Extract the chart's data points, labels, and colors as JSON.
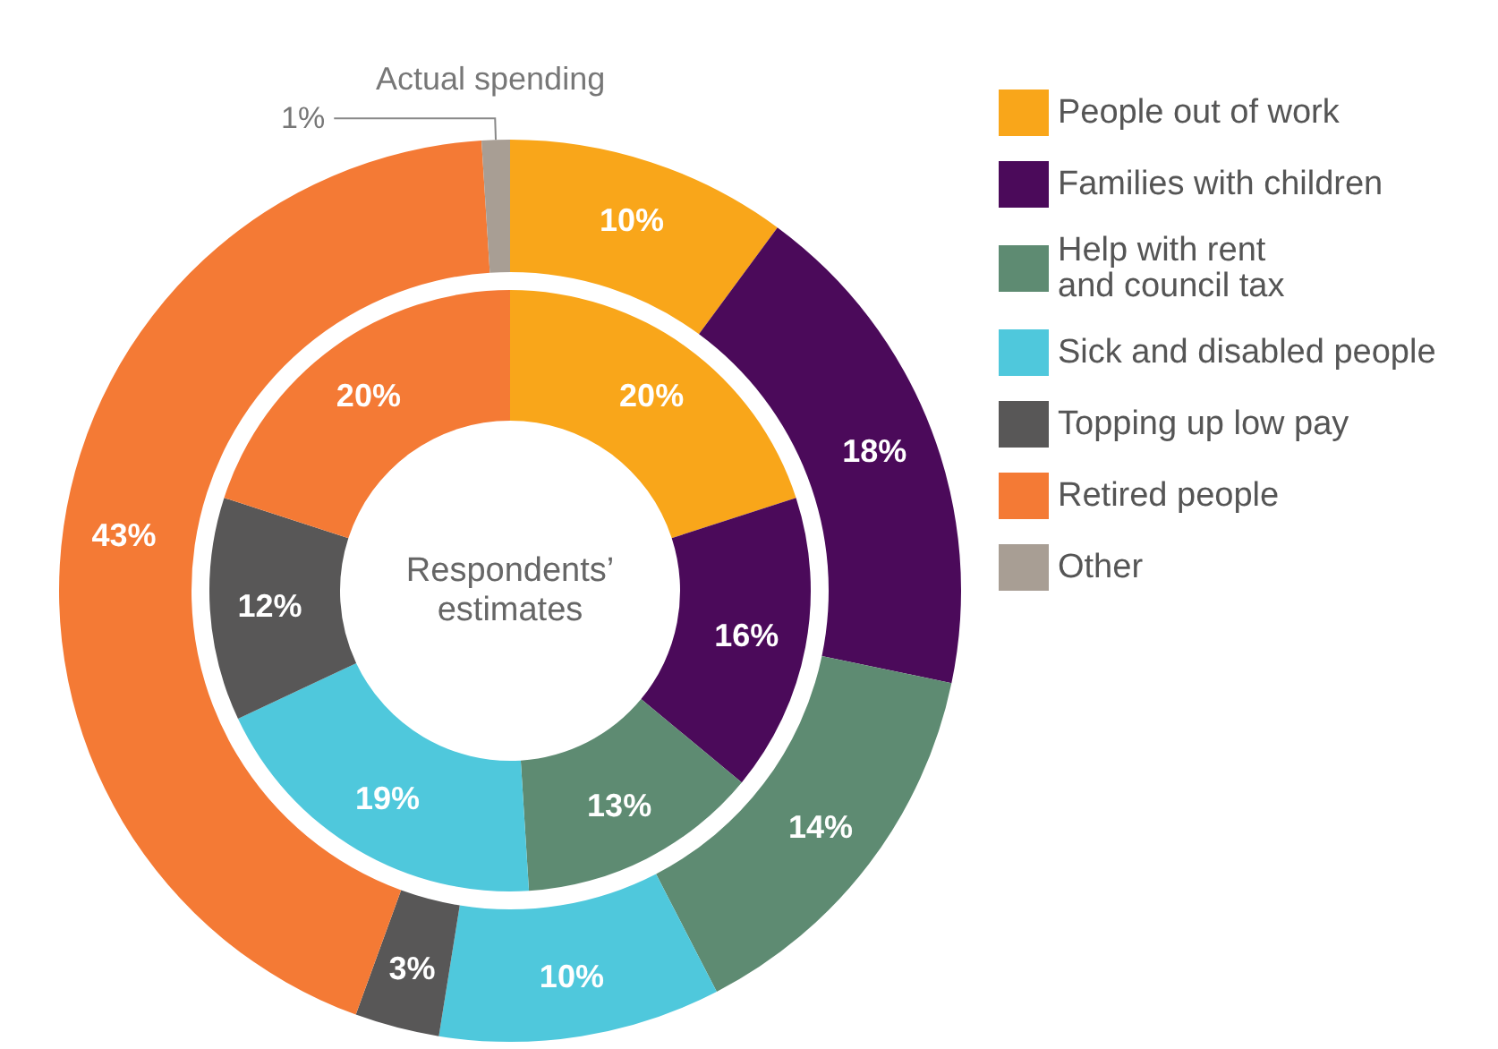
{
  "chart_data": {
    "type": "donut",
    "categories": [
      "People out of work",
      "Families with children",
      "Help with rent\nand council tax",
      "Sick and disabled people",
      "Topping up low pay",
      "Retired people",
      "Other"
    ],
    "colors": [
      "#f9a61a",
      "#4b0a5a",
      "#5e8b72",
      "#4fc8dc",
      "#585757",
      "#f47a35",
      "#a89e94"
    ],
    "series": [
      {
        "name": "Actual spending",
        "values": [
          10,
          18,
          14,
          10,
          3,
          43,
          1
        ],
        "value_labels": [
          "10%",
          "18%",
          "14%",
          "10%",
          "3%",
          "43%",
          "1%"
        ]
      },
      {
        "name": "Respondents’\nestimates",
        "values": [
          20,
          16,
          13,
          19,
          12,
          20,
          null
        ],
        "value_labels": [
          "20%",
          "16%",
          "13%",
          "19%",
          "12%",
          "20%",
          null
        ]
      }
    ],
    "legend": "top right"
  }
}
